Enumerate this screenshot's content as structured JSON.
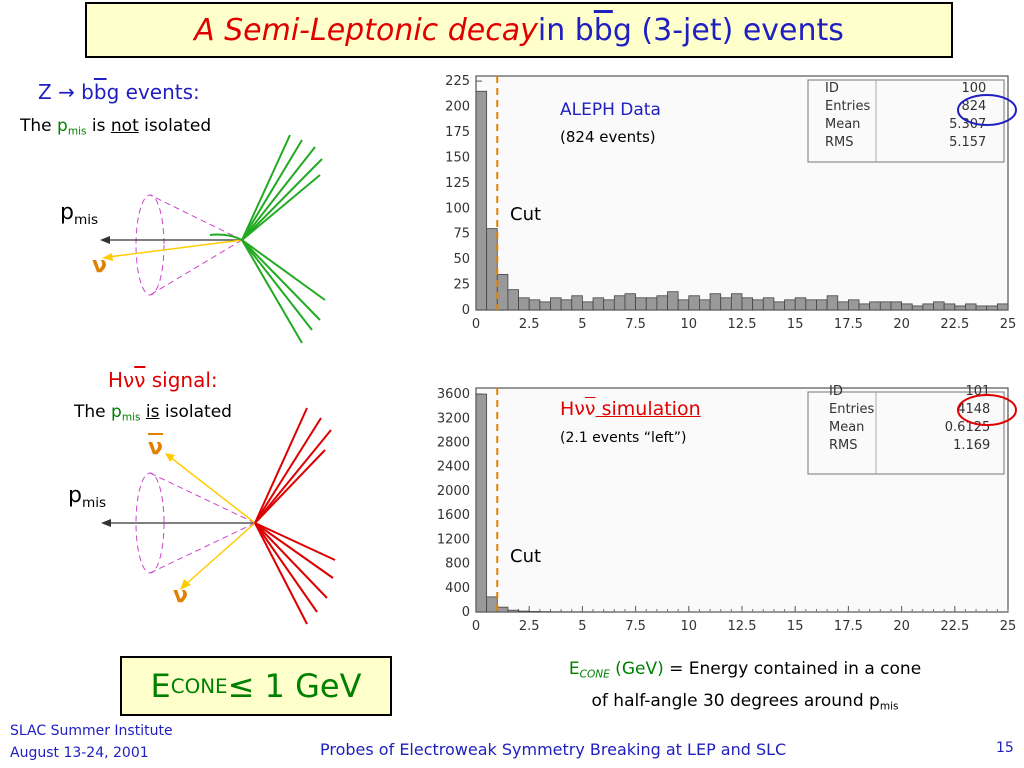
{
  "title": {
    "part1": "A Semi-Leptonic decay",
    "part2": " in b",
    "bbar": "b",
    "part3": "g (3-jet) events"
  },
  "left_top": {
    "heading_z": "Z",
    "heading_arrow": "→",
    "heading_b": " b",
    "heading_bbar": "b",
    "heading_rest": "g events:",
    "line_the": "The ",
    "p": "p",
    "mis": "mis",
    "line_is": " is ",
    "line_not": "not",
    "line_isolated": " isolated",
    "pmis_p": "p",
    "pmis_sub": "mis",
    "nu": "ν"
  },
  "left_bottom": {
    "heading_h": "H",
    "heading_nu": "ν",
    "heading_nubar": "ν",
    "heading_rest": " signal:",
    "line_the": "The ",
    "p": "p",
    "mis": "mis",
    "line_sp": " ",
    "line_is": "is",
    "line_isolated": " isolated",
    "nubar": "ν",
    "pmis_p": "p",
    "pmis_sub": "mis",
    "nu": "ν"
  },
  "colors": {
    "title_red": "#e00000",
    "title_blue": "#2020c0",
    "green": "#008000",
    "jet_green": "#22aa22",
    "jet_red": "#dd0000",
    "cut_orange": "#e08000",
    "box_yellow": "#ffffcc"
  },
  "chart_data": [
    {
      "type": "bar",
      "title": "ALEPH Data",
      "subtitle": "(824 events)",
      "xlim": [
        0,
        25
      ],
      "ylim": [
        0,
        230
      ],
      "x_ticks": [
        "0",
        "2.5",
        "5",
        "7.5",
        "10",
        "12.5",
        "15",
        "17.5",
        "20",
        "22.5",
        "25"
      ],
      "y_ticks": [
        "0",
        "25",
        "50",
        "75",
        "100",
        "125",
        "150",
        "175",
        "200",
        "225"
      ],
      "bin_width": 0.5,
      "values": [
        215,
        80,
        35,
        20,
        12,
        10,
        8,
        12,
        10,
        14,
        8,
        12,
        10,
        14,
        16,
        12,
        12,
        14,
        18,
        10,
        14,
        10,
        16,
        12,
        16,
        12,
        10,
        12,
        8,
        10,
        12,
        10,
        10,
        14,
        8,
        10,
        6,
        8,
        8,
        8,
        6,
        4,
        6,
        8,
        6,
        4,
        6,
        4,
        4,
        6
      ],
      "cut_label": "Cut",
      "cut_x": 1.0,
      "stats": [
        [
          "ID",
          "100"
        ],
        [
          "Entries",
          "824"
        ],
        [
          "Mean",
          "5.307"
        ],
        [
          "RMS",
          "5.157"
        ]
      ]
    },
    {
      "type": "bar",
      "title": "Hνν simulation",
      "title_h": "H",
      "title_nu1": "ν",
      "title_nu2": "ν",
      "title_rest": " simulation",
      "subtitle": "(2.1 events “left”)",
      "xlim": [
        0,
        25
      ],
      "ylim": [
        0,
        3700
      ],
      "x_ticks": [
        "0",
        "2.5",
        "5",
        "7.5",
        "10",
        "12.5",
        "15",
        "17.5",
        "20",
        "22.5",
        "25"
      ],
      "y_ticks": [
        "0",
        "400",
        "800",
        "1200",
        "1600",
        "2000",
        "2400",
        "2800",
        "3200",
        "3600"
      ],
      "bin_width": 0.5,
      "values": [
        3600,
        250,
        80,
        30,
        15,
        8,
        5,
        3,
        2,
        1,
        1,
        0,
        1,
        0,
        0,
        0,
        0,
        0,
        0,
        0,
        0,
        0,
        0,
        0,
        0,
        0,
        0,
        0,
        0,
        0,
        0,
        0,
        0,
        0,
        0,
        0,
        0,
        0,
        0,
        0,
        0,
        0,
        0,
        0,
        0,
        0,
        0,
        0,
        0,
        0
      ],
      "cut_label": "Cut",
      "cut_x": 1.0,
      "stats": [
        [
          "ID",
          "101"
        ],
        [
          "Entries",
          "4148"
        ],
        [
          "Mean",
          "0.6125"
        ],
        [
          "RMS",
          "1.169"
        ]
      ]
    }
  ],
  "caption": {
    "e": "E",
    "cone": "CONE",
    "gev": " (GeV)",
    "rest1": " = Energy contained in a cone",
    "rest2": "of half-angle 30 degrees around p",
    "mis": "mis"
  },
  "econe_box": {
    "e": "E",
    "cone": "CONE",
    "rest": " ≤ 1 GeV"
  },
  "footer": {
    "left1": "SLAC Summer Institute",
    "left2": "August 13-24, 2001",
    "center": "Probes of Electroweak Symmetry Breaking at LEP and SLC",
    "page": "15"
  }
}
